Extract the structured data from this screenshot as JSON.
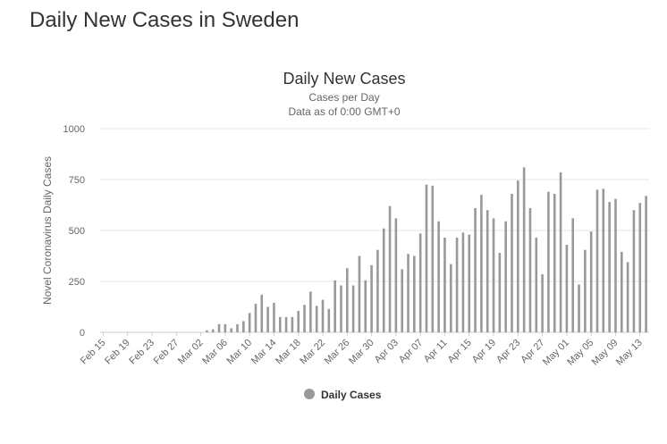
{
  "page": {
    "heading": "Daily New Cases in Sweden"
  },
  "colors": {
    "bar": "#999999",
    "grid": "#e6e6e6",
    "text": "#333333",
    "axis_text": "#666666"
  },
  "chart_data": {
    "type": "bar",
    "title": "Daily New Cases",
    "subtitle_lines": [
      "Cases per Day",
      "Data as of 0:00 GMT+0"
    ],
    "xlabel": "",
    "ylabel": "Novel Coronavirus Daily Cases",
    "ylim": [
      0,
      1000
    ],
    "yticks": [
      "0",
      "250",
      "500",
      "750",
      "1000"
    ],
    "x_tick_labels": [
      "Feb 15",
      "Feb 19",
      "Feb 23",
      "Feb 27",
      "Mar 02",
      "Mar 06",
      "Mar 10",
      "Mar 14",
      "Mar 18",
      "Mar 22",
      "Mar 26",
      "Mar 30",
      "Apr 03",
      "Apr 07",
      "Apr 11",
      "Apr 15",
      "Apr 19",
      "Apr 23",
      "Apr 27",
      "May 01",
      "May 05",
      "May 09",
      "May 13"
    ],
    "x_tick_every": 4,
    "grid": true,
    "legend_position": "bottom-center",
    "series": [
      {
        "name": "Daily Cases",
        "values": [
          0,
          0,
          0,
          0,
          0,
          0,
          0,
          0,
          0,
          0,
          0,
          0,
          0,
          0,
          0,
          0,
          0,
          10,
          15,
          40,
          40,
          20,
          40,
          55,
          95,
          140,
          185,
          125,
          145,
          75,
          75,
          75,
          105,
          135,
          200,
          130,
          160,
          115,
          255,
          230,
          315,
          230,
          375,
          255,
          330,
          405,
          510,
          620,
          560,
          310,
          385,
          375,
          485,
          725,
          720,
          545,
          465,
          335,
          465,
          490,
          480,
          610,
          675,
          600,
          560,
          390,
          545,
          680,
          745,
          810,
          610,
          465,
          285,
          690,
          680,
          785,
          430,
          560,
          235,
          405,
          495,
          700,
          705,
          640,
          655,
          395,
          345,
          600,
          635,
          670
        ]
      }
    ]
  }
}
